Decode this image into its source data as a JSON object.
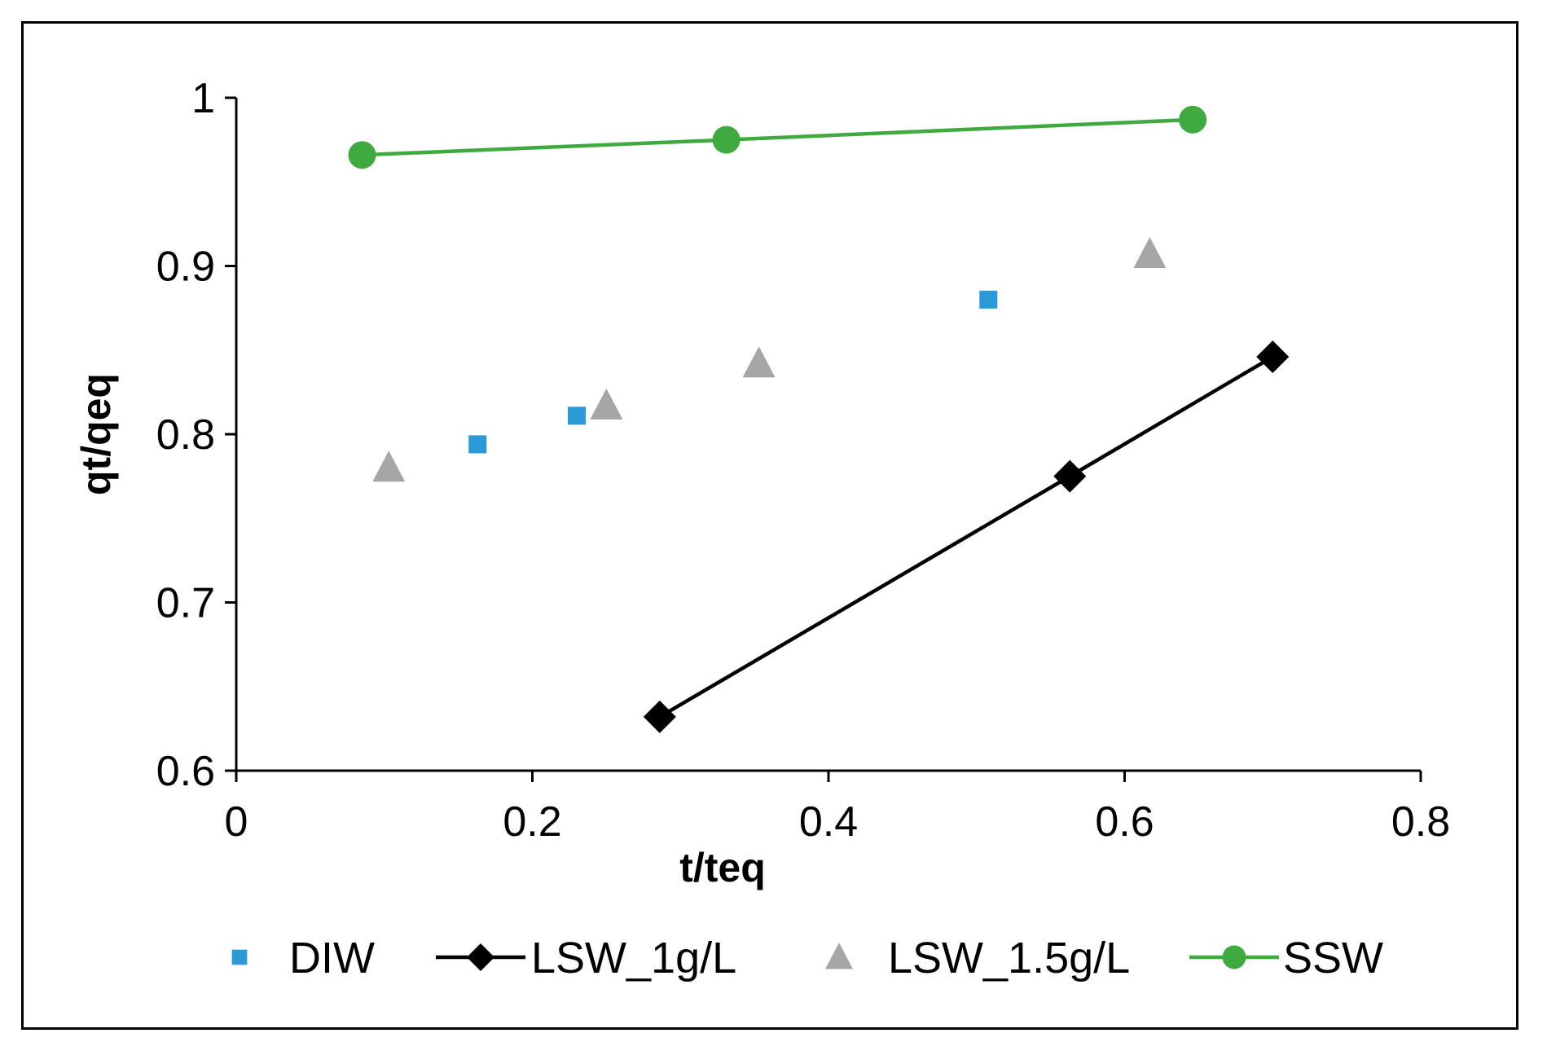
{
  "chart_data": {
    "type": "scatter",
    "title": "",
    "xlabel": "t/teq",
    "ylabel": "qt/qeq",
    "xlim": [
      0,
      0.8
    ],
    "ylim": [
      0.6,
      1
    ],
    "x_ticks": [
      "0",
      "0.2",
      "0.4",
      "0.6",
      "0.8"
    ],
    "y_ticks": [
      "0.6",
      "0.7",
      "0.8",
      "0.9",
      "1"
    ],
    "grid": false,
    "legend_position": "bottom",
    "series": [
      {
        "name": "DIW",
        "marker": "square",
        "line": false,
        "color": "#2b9bd8",
        "points": [
          [
            0.163,
            0.794
          ],
          [
            0.23,
            0.811
          ],
          [
            0.508,
            0.88
          ]
        ]
      },
      {
        "name": "LSW_1g/L",
        "marker": "diamond",
        "line": true,
        "color": "#000000",
        "points": [
          [
            0.286,
            0.632
          ],
          [
            0.563,
            0.775
          ],
          [
            0.7,
            0.846
          ]
        ]
      },
      {
        "name": "LSW_1.5g/L",
        "marker": "triangle",
        "line": false,
        "color": "#a6a6a6",
        "points": [
          [
            0.103,
            0.78
          ],
          [
            0.25,
            0.817
          ],
          [
            0.353,
            0.842
          ],
          [
            0.617,
            0.907
          ]
        ]
      },
      {
        "name": "SSW",
        "marker": "circle",
        "line": true,
        "color": "#3faa3f",
        "points": [
          [
            0.085,
            0.966
          ],
          [
            0.331,
            0.975
          ],
          [
            0.646,
            0.987
          ]
        ]
      }
    ]
  }
}
